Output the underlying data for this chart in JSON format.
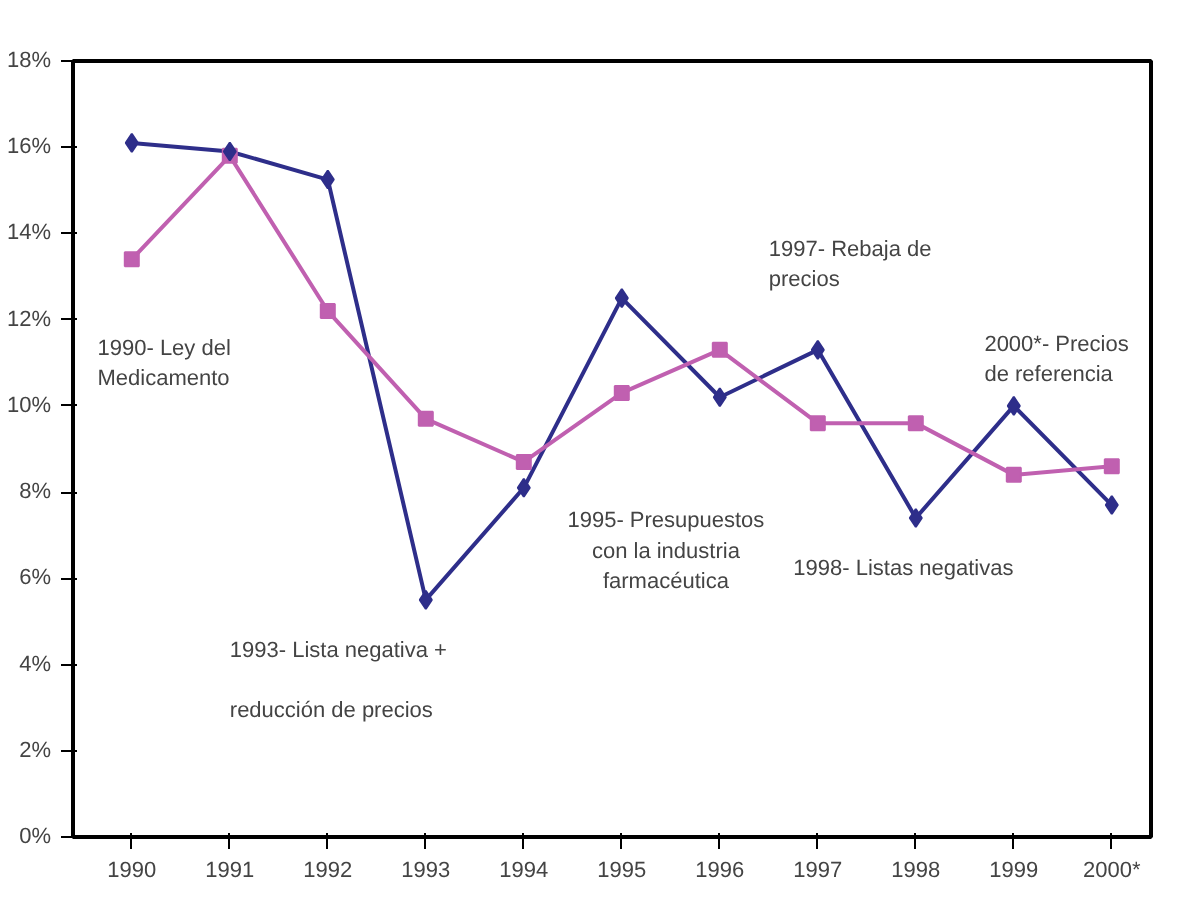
{
  "chart_data": {
    "type": "line",
    "categories": [
      "1990",
      "1991",
      "1992",
      "1993",
      "1994",
      "1995",
      "1996",
      "1997",
      "1998",
      "1999",
      "2000*"
    ],
    "series": [
      {
        "color": "#2e2e8a",
        "marker": "diamond",
        "values": [
          16.1,
          15.9,
          15.25,
          5.5,
          8.1,
          12.5,
          10.2,
          11.3,
          7.4,
          10.0,
          7.7
        ]
      },
      {
        "color": "#c060b0",
        "marker": "square",
        "values": [
          13.4,
          15.8,
          12.2,
          9.7,
          8.7,
          10.3,
          11.3,
          9.6,
          9.6,
          8.4,
          8.6
        ]
      }
    ],
    "ylim": [
      0,
      18
    ],
    "yticks": [
      {
        "value": 0,
        "label": "0%"
      },
      {
        "value": 2,
        "label": "2%"
      },
      {
        "value": 4,
        "label": "4%"
      },
      {
        "value": 6,
        "label": "6%"
      },
      {
        "value": 8,
        "label": "8%"
      },
      {
        "value": 10,
        "label": "10%"
      },
      {
        "value": 12,
        "label": "12%"
      },
      {
        "value": 14,
        "label": "14%"
      },
      {
        "value": 16,
        "label": "16%"
      },
      {
        "value": 18,
        "label": "18%"
      }
    ],
    "grid": false,
    "annotations": [
      "1990- Ley del\nMedicamento",
      "1993- Lista negativa +",
      "reducción de precios",
      "1995- Presupuestos\ncon la industria\nfarmacéutica",
      "1997- Rebaja de\nprecios",
      "1998- Listas negativas",
      "2000*- Precios\nde referencia"
    ]
  }
}
